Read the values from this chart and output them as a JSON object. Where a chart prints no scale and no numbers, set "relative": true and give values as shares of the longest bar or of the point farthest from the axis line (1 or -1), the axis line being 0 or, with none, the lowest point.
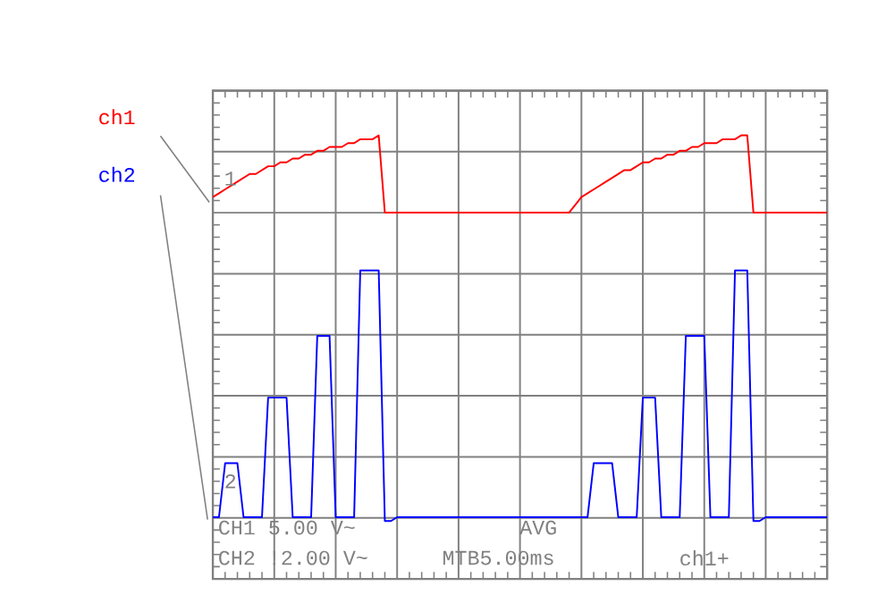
{
  "chart_data": {
    "type": "line",
    "relative": true,
    "grid": true,
    "categories": [
      null,
      null,
      null,
      null,
      null,
      null,
      null,
      null,
      null,
      null,
      null,
      null,
      null,
      null,
      null,
      null,
      null,
      null,
      null,
      null,
      null,
      null,
      null,
      null,
      null,
      null,
      null,
      null,
      null,
      null,
      null,
      null,
      null,
      null,
      null,
      null,
      null,
      null,
      null,
      null,
      null,
      null,
      null,
      null,
      null,
      null,
      null,
      null,
      null,
      null,
      null,
      null,
      null,
      null,
      null,
      null,
      null,
      null,
      null,
      null,
      null,
      null,
      null,
      null,
      null,
      null,
      null,
      null,
      null,
      null,
      null,
      null,
      null,
      null,
      null,
      null,
      null,
      null,
      null,
      null,
      null,
      null,
      null,
      null,
      null,
      null,
      null,
      null,
      null,
      null,
      null,
      null,
      null,
      null,
      null,
      null,
      null,
      null,
      null,
      null,
      null
    ],
    "series": [
      {
        "name": "ch1",
        "color": "#ff0000",
        "values": [
          0.84,
          0.85,
          0.86,
          0.87,
          0.88,
          0.89,
          0.9,
          0.9,
          0.91,
          0.92,
          0.92,
          0.93,
          0.93,
          0.94,
          0.94,
          0.95,
          0.95,
          0.96,
          0.96,
          0.97,
          0.97,
          0.97,
          0.98,
          0.98,
          0.99,
          0.99,
          0.99,
          1.0,
          0.8,
          0.8,
          0.8,
          0.8,
          0.8,
          0.8,
          0.8,
          0.8,
          0.8,
          0.8,
          0.8,
          0.8,
          0.8,
          0.8,
          0.8,
          0.8,
          0.8,
          0.8,
          0.8,
          0.8,
          0.8,
          0.8,
          0.8,
          0.8,
          0.8,
          0.8,
          0.8,
          0.8,
          0.8,
          0.8,
          0.8,
          0.82,
          0.84,
          0.85,
          0.86,
          0.87,
          0.88,
          0.89,
          0.9,
          0.91,
          0.91,
          0.92,
          0.93,
          0.93,
          0.94,
          0.94,
          0.95,
          0.95,
          0.96,
          0.96,
          0.97,
          0.97,
          0.98,
          0.98,
          0.98,
          0.99,
          0.99,
          0.99,
          1.0,
          1.0,
          0.8,
          0.8,
          0.8,
          0.8,
          0.8,
          0.8,
          0.8,
          0.8,
          0.8,
          0.8,
          0.8,
          0.8,
          0.8
        ]
      },
      {
        "name": "ch2",
        "color": "#0000ff",
        "values": [
          0.01,
          0.01,
          0.15,
          0.15,
          0.15,
          0.01,
          0.01,
          0.01,
          0.01,
          0.32,
          0.32,
          0.32,
          0.32,
          0.01,
          0.01,
          0.01,
          0.01,
          0.48,
          0.48,
          0.48,
          0.01,
          0.01,
          0.01,
          0.01,
          0.65,
          0.65,
          0.65,
          0.65,
          0,
          0,
          0.01,
          0.01,
          0.01,
          0.01,
          0.01,
          0.01,
          0.01,
          0.01,
          0.01,
          0.01,
          0.01,
          0.01,
          0.01,
          0.01,
          0.01,
          0.01,
          0.01,
          0.01,
          0.01,
          0.01,
          0.01,
          0.01,
          0.01,
          0.01,
          0.01,
          0.01,
          0.01,
          0.01,
          0.01,
          0.01,
          0.01,
          0.01,
          0.15,
          0.15,
          0.15,
          0.15,
          0.01,
          0.01,
          0.01,
          0.01,
          0.32,
          0.32,
          0.32,
          0.01,
          0.01,
          0.01,
          0.01,
          0.48,
          0.48,
          0.48,
          0.48,
          0.01,
          0.01,
          0.01,
          0.01,
          0.65,
          0.65,
          0.65,
          0,
          0,
          0.01,
          0.01,
          0.01,
          0.01,
          0.01,
          0.01,
          0.01,
          0.01,
          0.01,
          0.01,
          0.01
        ]
      }
    ],
    "annotations": [
      "1",
      "2",
      "CH1 5.00 V~",
      "AVG",
      "CH2 !2.00 V~",
      "MTB5.00ms",
      "ch1+"
    ]
  }
}
